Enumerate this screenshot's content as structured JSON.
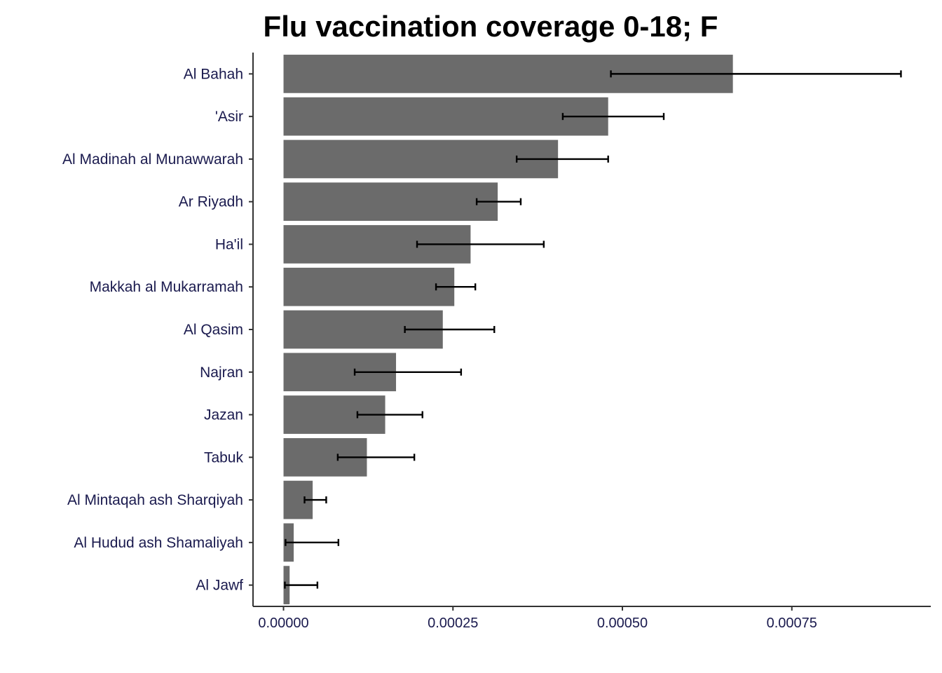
{
  "chart_data": {
    "type": "bar",
    "orientation": "horizontal",
    "title": "Flu vaccination coverage 0-18; F",
    "xlabel": "",
    "ylabel": "",
    "categories": [
      "Al Bahah",
      "'Asir",
      "Al Madinah al Munawwarah",
      "Ar Riyadh",
      "Ha'il",
      "Makkah al Mukarramah",
      "Al Qasim",
      "Najran",
      "Jazan",
      "Tabuk",
      "Al Mintaqah ash Sharqiyah",
      "Al Hudud ash Shamaliyah",
      "Al Jawf"
    ],
    "values": [
      0.000663,
      0.000479,
      0.000405,
      0.000316,
      0.000276,
      0.000252,
      0.000235,
      0.000166,
      0.00015,
      0.000123,
      4.3e-05,
      1.5e-05,
      9e-06
    ],
    "error_low": [
      0.000483,
      0.000412,
      0.000344,
      0.000285,
      0.000197,
      0.000225,
      0.000179,
      0.000105,
      0.000109,
      8e-05,
      3.1e-05,
      3e-06,
      2e-06
    ],
    "error_high": [
      0.000911,
      0.000561,
      0.000479,
      0.00035,
      0.000384,
      0.000283,
      0.000311,
      0.000262,
      0.000205,
      0.000193,
      6.3e-05,
      8.1e-05,
      5e-05
    ],
    "xlim": [
      -4.5e-05,
      0.000955
    ],
    "xticks": [
      0,
      0.00025,
      0.0005,
      0.00075
    ],
    "xtick_labels": [
      "0.00000",
      "0.00025",
      "0.00050",
      "0.00075"
    ],
    "grid": false,
    "bar_color": "#6b6b6b",
    "error_color": "#000000",
    "axis_color": "#333333",
    "label_color": "#1a1a4e"
  }
}
